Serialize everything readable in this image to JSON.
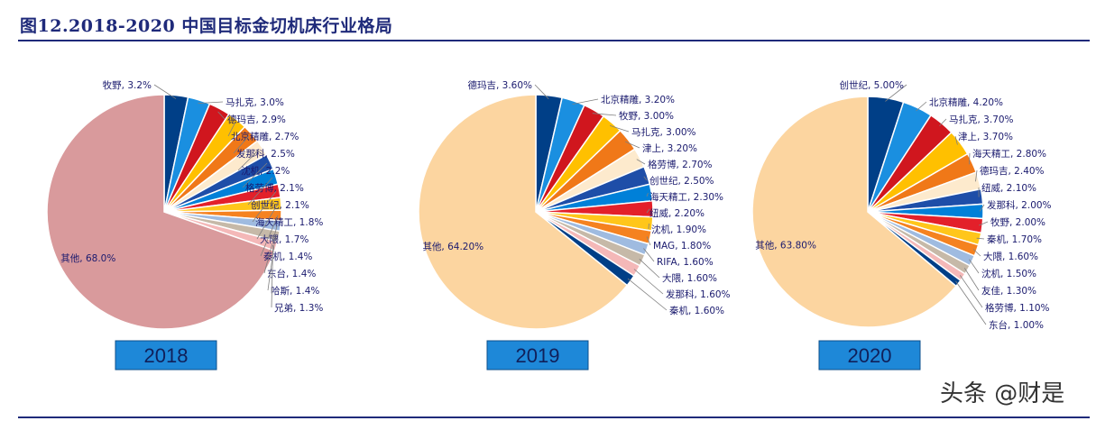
{
  "title": "图12.2018-2020 中国目标金切机床行业格局",
  "watermark": "头条 @财是",
  "colors": [
    "#003f87",
    "#1a8fe0",
    "#d0161e",
    "#ffc000",
    "#f07818",
    "#fdeacd",
    "#1e4ea8",
    "#0080d8",
    "#e3202a",
    "#ffc61a",
    "#f58220",
    "#9fbbe0",
    "#c6b9a8",
    "#f4b8b8"
  ],
  "other_color_2018": "#d99a9c",
  "other_color": "#fcd5a0",
  "chart_data": [
    {
      "type": "pie",
      "year": "2018",
      "slices": [
        {
          "label": "牧野, 3.2%",
          "value": 3.2
        },
        {
          "label": "马扎克, 3.0%",
          "value": 3.0
        },
        {
          "label": "德玛吉, 2.9%",
          "value": 2.9
        },
        {
          "label": "北京精雕, 2.7%",
          "value": 2.7
        },
        {
          "label": "发那科, 2.5%",
          "value": 2.5
        },
        {
          "label": "沈机, 2.2%",
          "value": 2.2
        },
        {
          "label": "格劳博, 2.1%",
          "value": 2.1
        },
        {
          "label": "创世纪, 2.1%",
          "value": 2.1
        },
        {
          "label": "海天精工, 1.8%",
          "value": 1.8
        },
        {
          "label": "大隈, 1.7%",
          "value": 1.7
        },
        {
          "label": "秦机, 1.4%",
          "value": 1.4
        },
        {
          "label": "东台, 1.4%",
          "value": 1.4
        },
        {
          "label": "哈斯, 1.4%",
          "value": 1.4
        },
        {
          "label": "兄弟, 1.3%",
          "value": 1.3
        },
        {
          "label": "其他, 68.0%",
          "value": 68.0,
          "other": true
        }
      ]
    },
    {
      "type": "pie",
      "year": "2019",
      "slices": [
        {
          "label": "德玛吉, 3.60%",
          "value": 3.6
        },
        {
          "label": "北京精雕, 3.20%",
          "value": 3.2
        },
        {
          "label": "牧野, 3.00%",
          "value": 3.0
        },
        {
          "label": "马扎克, 3.00%",
          "value": 3.0
        },
        {
          "label": "津上, 3.20%",
          "value": 3.2
        },
        {
          "label": "格劳博, 2.70%",
          "value": 2.7
        },
        {
          "label": "创世纪, 2.50%",
          "value": 2.5
        },
        {
          "label": "海天精工, 2.30%",
          "value": 2.3
        },
        {
          "label": "纽威, 2.20%",
          "value": 2.2
        },
        {
          "label": "沈机, 1.90%",
          "value": 1.9
        },
        {
          "label": "MAG, 1.80%",
          "value": 1.8
        },
        {
          "label": "RIFA, 1.60%",
          "value": 1.6
        },
        {
          "label": "大隈, 1.60%",
          "value": 1.6
        },
        {
          "label": "发那科, 1.60%",
          "value": 1.6
        },
        {
          "label": "秦机, 1.60%",
          "value": 1.6
        },
        {
          "label": "其他, 64.20%",
          "value": 64.2,
          "other": true
        }
      ]
    },
    {
      "type": "pie",
      "year": "2020",
      "slices": [
        {
          "label": "创世纪, 5.00%",
          "value": 5.0
        },
        {
          "label": "北京精雕, 4.20%",
          "value": 4.2
        },
        {
          "label": "马扎克, 3.70%",
          "value": 3.7
        },
        {
          "label": "津上, 3.70%",
          "value": 3.7
        },
        {
          "label": "海天精工, 2.80%",
          "value": 2.8
        },
        {
          "label": "德玛吉, 2.40%",
          "value": 2.4
        },
        {
          "label": "纽威, 2.10%",
          "value": 2.1
        },
        {
          "label": "发那科, 2.00%",
          "value": 2.0
        },
        {
          "label": "牧野, 2.00%",
          "value": 2.0
        },
        {
          "label": "秦机, 1.70%",
          "value": 1.7
        },
        {
          "label": "大隈, 1.60%",
          "value": 1.6
        },
        {
          "label": "沈机, 1.50%",
          "value": 1.5
        },
        {
          "label": "友佳, 1.30%",
          "value": 1.3
        },
        {
          "label": "格劳博, 1.10%",
          "value": 1.1
        },
        {
          "label": "东台, 1.00%",
          "value": 1.0
        },
        {
          "label": "其他, 63.80%",
          "value": 63.8,
          "other": true
        }
      ]
    }
  ]
}
